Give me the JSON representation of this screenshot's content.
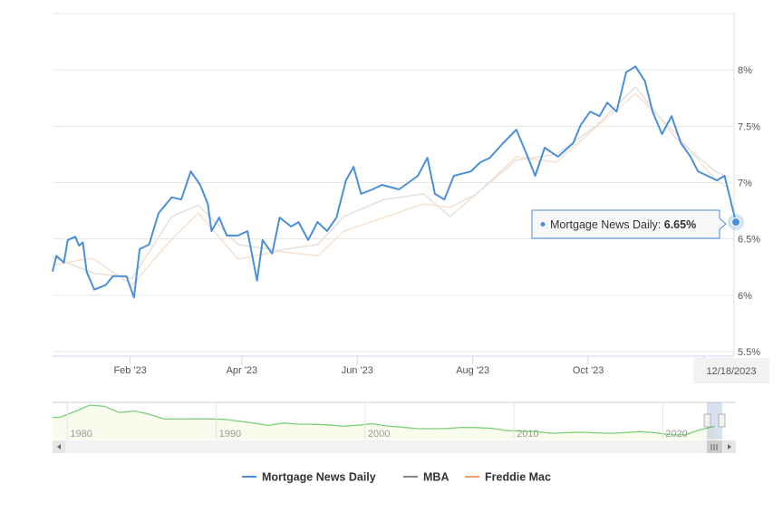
{
  "chart_data": {
    "type": "line",
    "title": "",
    "xlabel": "",
    "ylabel": "",
    "ylim": [
      5.5,
      8.5
    ],
    "xrange": [
      "2022-12-22",
      "2023-12-18"
    ],
    "y_ticks": [
      "5.5%",
      "6%",
      "6.5%",
      "7%",
      "7.5%",
      "8%"
    ],
    "y_tick_values": [
      5.5,
      6,
      6.5,
      7,
      7.5,
      8
    ],
    "x_ticks": [
      {
        "label": "Feb '23",
        "date": "2023-02-01"
      },
      {
        "label": "Apr '23",
        "date": "2023-04-01"
      },
      {
        "label": "Jun '23",
        "date": "2023-06-01"
      },
      {
        "label": "Aug '23",
        "date": "2023-08-01"
      },
      {
        "label": "Oct '23",
        "date": "2023-10-01"
      },
      {
        "label": "D",
        "date": "2023-12-01"
      }
    ],
    "grid": true,
    "legend_position": "bottom-center",
    "series": [
      {
        "name": "Mortgage News Daily",
        "color": "#4a90d9",
        "dates": [
          "2022-12-22",
          "2022-12-24",
          "2022-12-28",
          "2022-12-30",
          "2023-01-03",
          "2023-01-05",
          "2023-01-07",
          "2023-01-09",
          "2023-01-13",
          "2023-01-19",
          "2023-01-23",
          "2023-01-30",
          "2023-02-03",
          "2023-02-06",
          "2023-02-11",
          "2023-02-16",
          "2023-02-23",
          "2023-02-28",
          "2023-03-05",
          "2023-03-10",
          "2023-03-14",
          "2023-03-16",
          "2023-03-20",
          "2023-03-24",
          "2023-03-30",
          "2023-04-04",
          "2023-04-09",
          "2023-04-12",
          "2023-04-17",
          "2023-04-21",
          "2023-04-27",
          "2023-05-01",
          "2023-05-06",
          "2023-05-11",
          "2023-05-16",
          "2023-05-21",
          "2023-05-26",
          "2023-05-30",
          "2023-06-03",
          "2023-06-09",
          "2023-06-14",
          "2023-06-23",
          "2023-07-03",
          "2023-07-08",
          "2023-07-12",
          "2023-07-17",
          "2023-07-22",
          "2023-07-31",
          "2023-08-05",
          "2023-08-10",
          "2023-08-17",
          "2023-08-24",
          "2023-08-29",
          "2023-09-03",
          "2023-09-08",
          "2023-09-15",
          "2023-09-23",
          "2023-09-27",
          "2023-10-02",
          "2023-10-07",
          "2023-10-11",
          "2023-10-16",
          "2023-10-21",
          "2023-10-26",
          "2023-10-31",
          "2023-11-04",
          "2023-11-09",
          "2023-11-14",
          "2023-11-19",
          "2023-11-24",
          "2023-11-28",
          "2023-12-03",
          "2023-12-08",
          "2023-12-12",
          "2023-12-18"
        ],
        "values": [
          6.21,
          6.35,
          6.29,
          6.49,
          6.52,
          6.44,
          6.47,
          6.21,
          6.05,
          6.09,
          6.17,
          6.17,
          5.98,
          6.41,
          6.45,
          6.73,
          6.87,
          6.85,
          7.1,
          6.98,
          6.81,
          6.57,
          6.69,
          6.53,
          6.53,
          6.57,
          6.13,
          6.49,
          6.37,
          6.69,
          6.61,
          6.65,
          6.49,
          6.65,
          6.57,
          6.69,
          7.02,
          7.14,
          6.9,
          6.94,
          6.98,
          6.94,
          7.06,
          7.22,
          6.9,
          6.85,
          7.06,
          7.1,
          7.18,
          7.22,
          7.35,
          7.47,
          7.27,
          7.06,
          7.31,
          7.23,
          7.35,
          7.51,
          7.63,
          7.59,
          7.71,
          7.63,
          7.98,
          8.03,
          7.9,
          7.63,
          7.43,
          7.59,
          7.35,
          7.23,
          7.1,
          7.06,
          7.02,
          7.06,
          6.65
        ]
      },
      {
        "name": "MBA",
        "color": "#e6e0dc",
        "dates": [
          "2022-12-22",
          "2023-01-12",
          "2023-02-02",
          "2023-02-23",
          "2023-03-09",
          "2023-03-30",
          "2023-04-20",
          "2023-05-11",
          "2023-05-25",
          "2023-06-15",
          "2023-07-06",
          "2023-07-20",
          "2023-08-03",
          "2023-08-24",
          "2023-09-14",
          "2023-10-05",
          "2023-10-26",
          "2023-11-16",
          "2023-12-07",
          "2023-12-14"
        ],
        "values": [
          6.34,
          6.2,
          6.15,
          6.7,
          6.8,
          6.45,
          6.4,
          6.45,
          6.7,
          6.85,
          6.9,
          6.7,
          6.9,
          7.2,
          7.25,
          7.5,
          7.85,
          7.4,
          7.1,
          7.05
        ]
      },
      {
        "name": "Freddie Mac",
        "color": "#f7e1cf",
        "dates": [
          "2022-12-22",
          "2023-01-12",
          "2023-02-02",
          "2023-02-23",
          "2023-03-09",
          "2023-03-30",
          "2023-04-20",
          "2023-05-11",
          "2023-05-25",
          "2023-06-15",
          "2023-07-06",
          "2023-07-20",
          "2023-08-03",
          "2023-08-24",
          "2023-09-14",
          "2023-10-05",
          "2023-10-26",
          "2023-11-16",
          "2023-12-07",
          "2023-12-14"
        ],
        "values": [
          6.27,
          6.33,
          6.09,
          6.5,
          6.73,
          6.32,
          6.39,
          6.35,
          6.57,
          6.69,
          6.81,
          6.78,
          6.9,
          7.23,
          7.18,
          7.49,
          7.79,
          7.44,
          7.03,
          6.95
        ]
      }
    ],
    "navigator": {
      "series_color": "#7ccf7a",
      "year_labels": [
        "1980",
        "1990",
        "2000",
        "2010",
        "2020"
      ],
      "years": [
        1979,
        1980,
        1981,
        1982,
        1983,
        1984,
        1985,
        1986,
        1987,
        1988,
        1989,
        1990,
        1991,
        1992,
        1993,
        1994,
        1995,
        1996,
        1997,
        1998,
        1999,
        2000,
        2001,
        2002,
        2003,
        2004,
        2005,
        2006,
        2007,
        2008,
        2009,
        2010,
        2011,
        2012,
        2013,
        2014,
        2015,
        2016,
        2017,
        2018,
        2019,
        2020,
        2021,
        2022,
        2023
      ],
      "values": [
        11,
        13.7,
        16.6,
        16,
        13.2,
        13.9,
        12.4,
        10.2,
        10.2,
        10.3,
        10.3,
        10.1,
        9.3,
        8.4,
        7.3,
        8.4,
        7.9,
        7.8,
        7.6,
        6.9,
        7.4,
        8.1,
        7.0,
        6.5,
        5.8,
        5.8,
        5.9,
        6.4,
        6.3,
        6.0,
        5.0,
        4.7,
        4.5,
        3.7,
        4.0,
        4.2,
        3.9,
        3.7,
        4.0,
        4.5,
        3.9,
        3.1,
        3.0,
        5.3,
        6.9
      ]
    },
    "tooltip": {
      "series": "Mortgage News Daily",
      "label": "Mortgage News Daily: ",
      "value": "6.65%",
      "date": "12/18/2023"
    }
  },
  "legend": [
    {
      "label": "Mortgage News Daily",
      "color": "#4a90d9"
    },
    {
      "label": "MBA",
      "color": "#888888"
    },
    {
      "label": "Freddie Mac",
      "color": "#f0a070"
    }
  ]
}
